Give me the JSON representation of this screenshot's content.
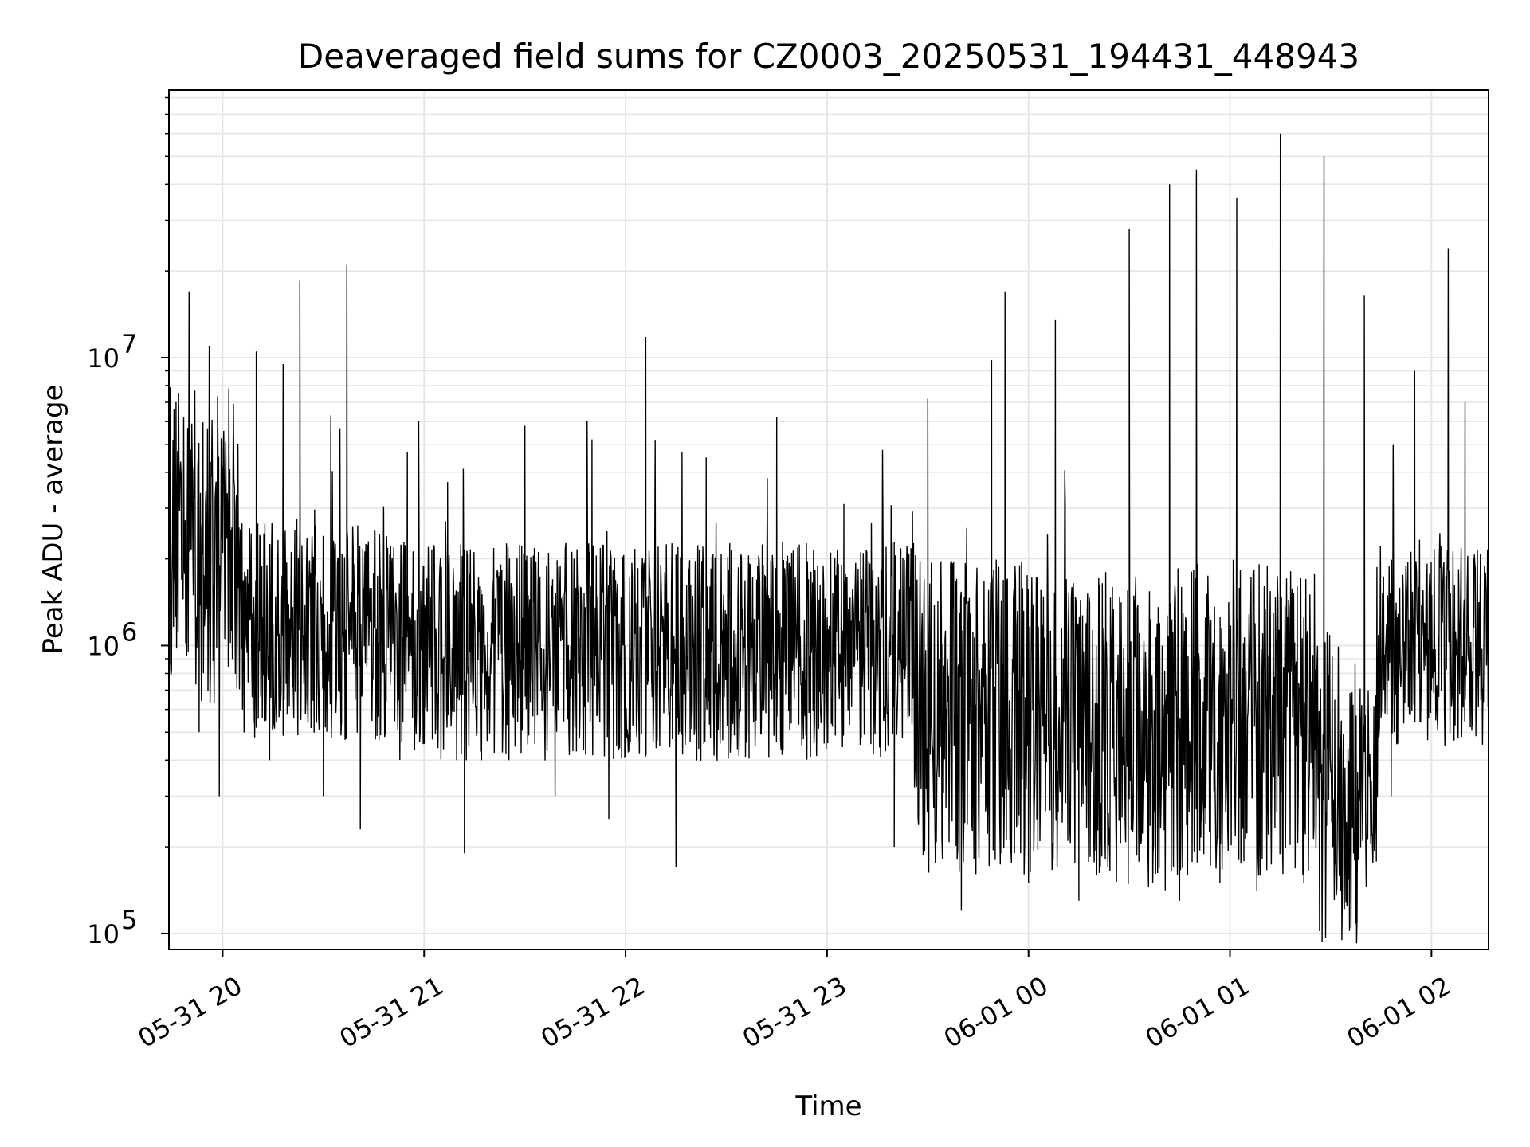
{
  "chart_data": {
    "type": "line",
    "title": "Deaveraged field sums for CZ0003_20250531_194431_448943",
    "xlabel": "Time",
    "ylabel": "Peak ADU - average",
    "y_scale": "log",
    "ylim": [
      88000,
      85000000
    ],
    "xlim": [
      "2025-05-31 19:44",
      "2025-06-01 02:17"
    ],
    "x_ticks": [
      "2025-05-31 20:00",
      "2025-05-31 21:00",
      "2025-05-31 22:00",
      "2025-05-31 23:00",
      "2025-06-01 00:00",
      "2025-06-01 01:00",
      "2025-06-01 02:00"
    ],
    "x_tick_labels": [
      "05-31 20",
      "05-31 21",
      "05-31 22",
      "05-31 23",
      "06-01 00",
      "06-01 01",
      "06-01 02"
    ],
    "y_ticks": [
      100000,
      1000000,
      10000000
    ],
    "y_tick_labels": [
      {
        "base": "10",
        "exp": "5"
      },
      {
        "base": "10",
        "exp": "6"
      },
      {
        "base": "10",
        "exp": "7"
      }
    ],
    "grid": true,
    "line_color": "#000000",
    "series": [
      {
        "x": [
          "2025-05-31 19:44",
          "2025-05-31 19:50",
          "2025-05-31 19:53",
          "2025-05-31 19:56",
          "2025-05-31 19:59",
          "2025-05-31 20:02",
          "2025-05-31 20:10",
          "2025-05-31 20:14",
          "2025-05-31 20:18",
          "2025-05-31 20:23",
          "2025-05-31 20:30",
          "2025-05-31 20:37",
          "2025-05-31 20:41",
          "2025-05-31 20:47",
          "2025-05-31 20:55",
          "2025-05-31 21:00",
          "2025-05-31 21:07",
          "2025-05-31 21:12",
          "2025-05-31 21:20",
          "2025-05-31 21:30",
          "2025-05-31 21:39",
          "2025-05-31 21:50",
          "2025-05-31 21:55",
          "2025-05-31 22:00",
          "2025-05-31 22:06",
          "2025-05-31 22:15",
          "2025-05-31 22:24",
          "2025-05-31 22:30",
          "2025-05-31 22:45",
          "2025-05-31 22:55",
          "2025-05-31 23:05",
          "2025-05-31 23:20",
          "2025-05-31 23:30",
          "2025-05-31 23:40",
          "2025-05-31 23:49",
          "2025-05-31 23:53",
          "2025-06-01 00:00",
          "2025-06-01 00:08",
          "2025-06-01 00:15",
          "2025-06-01 00:23",
          "2025-06-01 00:30",
          "2025-06-01 00:37",
          "2025-06-01 00:42",
          "2025-06-01 00:45",
          "2025-06-01 00:50",
          "2025-06-01 00:57",
          "2025-06-01 01:02",
          "2025-06-01 01:08",
          "2025-06-01 01:15",
          "2025-06-01 01:22",
          "2025-06-01 01:28",
          "2025-06-01 01:33",
          "2025-06-01 01:40",
          "2025-06-01 01:48",
          "2025-06-01 01:55",
          "2025-06-01 02:00",
          "2025-06-01 02:05",
          "2025-06-01 02:10",
          "2025-06-01 02:17"
        ],
        "values": [
          1500000,
          17000000,
          500000,
          11000000,
          300000,
          2500000,
          10500000,
          400000,
          9500000,
          18500000,
          300000,
          21000000,
          230000,
          1500000,
          4700000,
          800000,
          3700000,
          190000,
          1200000,
          5800000,
          300000,
          5200000,
          250000,
          1000000,
          11800000,
          170000,
          4500000,
          1200000,
          6200000,
          800000,
          3100000,
          200000,
          7200000,
          120000,
          9800000,
          17000000,
          150000,
          13500000,
          130000,
          1800000,
          28000000,
          150000,
          40000000,
          130000,
          45000000,
          150000,
          36000000,
          140000,
          60000000,
          150000,
          50000000,
          140000,
          16500000,
          300000,
          9000000,
          700000,
          24000000,
          7000000,
          900000
        ]
      }
    ]
  }
}
